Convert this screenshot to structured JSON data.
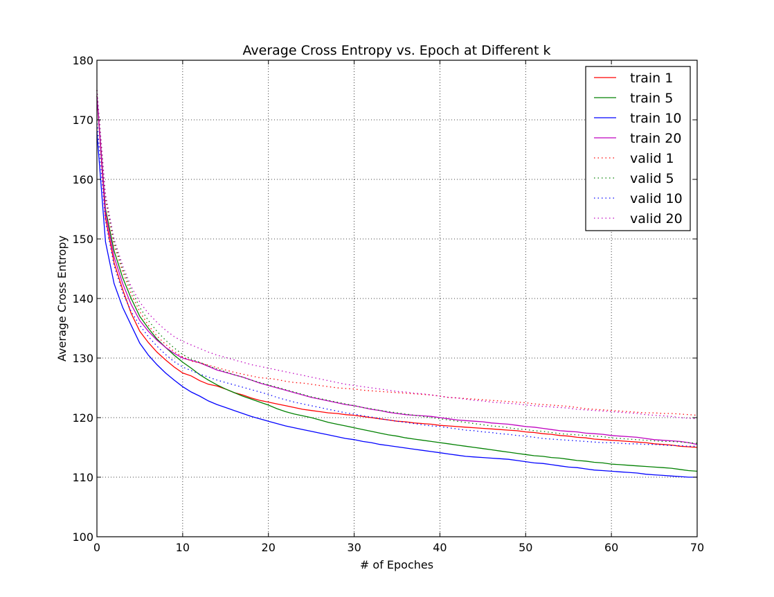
{
  "chart_data": {
    "type": "line",
    "title": "Average Cross Entropy vs. Epoch  at Different k",
    "xlabel": "# of Epoches",
    "ylabel": "Average Cross Entropy",
    "xlim": [
      0,
      70
    ],
    "ylim": [
      100,
      180
    ],
    "xticks": [
      0,
      10,
      20,
      30,
      40,
      50,
      60,
      70
    ],
    "yticks": [
      100,
      110,
      120,
      130,
      140,
      150,
      160,
      170,
      180
    ],
    "grid": true,
    "legend_position": "top-right",
    "x": [
      0,
      1,
      2,
      3,
      4,
      5,
      6,
      7,
      8,
      9,
      10,
      11,
      12,
      13,
      14,
      15,
      16,
      17,
      18,
      19,
      20,
      21,
      22,
      23,
      24,
      25,
      26,
      27,
      28,
      29,
      30,
      31,
      32,
      33,
      34,
      35,
      36,
      37,
      38,
      39,
      40,
      41,
      42,
      43,
      44,
      45,
      46,
      47,
      48,
      49,
      50,
      51,
      52,
      53,
      54,
      55,
      56,
      57,
      58,
      59,
      60,
      61,
      62,
      63,
      64,
      65,
      66,
      67,
      68,
      69,
      70
    ],
    "series": [
      {
        "name": "train 1",
        "color": "#ff0000",
        "style": "solid",
        "values": [
          174,
          153.5,
          146,
          141.5,
          137.5,
          134.5,
          132.6,
          131,
          129.7,
          128.5,
          127.5,
          127,
          126.2,
          125.6,
          125.3,
          124.8,
          124.2,
          123.8,
          123.3,
          122.9,
          122.6,
          122.3,
          122,
          121.7,
          121.4,
          121.2,
          121,
          120.8,
          120.7,
          120.5,
          120.4,
          120.2,
          120,
          119.8,
          119.6,
          119.4,
          119.3,
          119.1,
          119,
          118.9,
          118.7,
          118.6,
          118.5,
          118.4,
          118.3,
          118.2,
          118.1,
          118,
          117.9,
          117.8,
          117.6,
          117.5,
          117.3,
          117.2,
          117,
          116.9,
          116.7,
          116.6,
          116.4,
          116.3,
          116.2,
          116.1,
          116,
          115.9,
          115.8,
          115.6,
          115.5,
          115.4,
          115.2,
          115.1,
          115
        ]
      },
      {
        "name": "train 5",
        "color": "#008000",
        "style": "solid",
        "values": [
          174,
          155,
          148,
          143.5,
          140,
          137,
          135,
          133.2,
          131.8,
          130.5,
          129.3,
          128.3,
          127.2,
          126.3,
          125.5,
          124.8,
          124.2,
          123.6,
          123.1,
          122.6,
          122.1,
          121.5,
          121,
          120.6,
          120.3,
          120,
          119.6,
          119.2,
          118.9,
          118.6,
          118.3,
          118,
          117.7,
          117.4,
          117.1,
          116.9,
          116.6,
          116.4,
          116.2,
          116,
          115.8,
          115.6,
          115.4,
          115.2,
          115,
          114.8,
          114.6,
          114.4,
          114.2,
          114,
          113.8,
          113.6,
          113.5,
          113.3,
          113.2,
          113,
          112.8,
          112.7,
          112.5,
          112.4,
          112.2,
          112.1,
          112,
          111.9,
          111.8,
          111.7,
          111.6,
          111.5,
          111.3,
          111.1,
          111
        ]
      },
      {
        "name": "train 10",
        "color": "#0000ff",
        "style": "solid",
        "values": [
          168,
          149.5,
          142.5,
          138.5,
          135.5,
          132.5,
          130.5,
          128.9,
          127.5,
          126.3,
          125.2,
          124.3,
          123.6,
          122.8,
          122.2,
          121.7,
          121.2,
          120.7,
          120.2,
          119.8,
          119.4,
          119,
          118.6,
          118.3,
          118,
          117.7,
          117.4,
          117.1,
          116.8,
          116.5,
          116.3,
          116,
          115.8,
          115.5,
          115.3,
          115.1,
          114.9,
          114.7,
          114.5,
          114.3,
          114.1,
          113.9,
          113.7,
          113.5,
          113.4,
          113.3,
          113.2,
          113.1,
          113,
          112.8,
          112.6,
          112.4,
          112.3,
          112.1,
          111.9,
          111.7,
          111.6,
          111.4,
          111.2,
          111.1,
          111,
          110.9,
          110.8,
          110.7,
          110.5,
          110.4,
          110.3,
          110.2,
          110.1,
          110,
          110
        ]
      },
      {
        "name": "train 20",
        "color": "#bf00bf",
        "style": "solid",
        "values": [
          174,
          154.5,
          147,
          142.5,
          139,
          136.3,
          134.5,
          133,
          131.8,
          130.8,
          130,
          129.6,
          129.2,
          128.6,
          128,
          127.6,
          127.2,
          126.8,
          126.3,
          125.8,
          125.4,
          125,
          124.6,
          124.2,
          123.8,
          123.4,
          123.1,
          122.8,
          122.5,
          122.2,
          122,
          121.7,
          121.4,
          121.2,
          120.9,
          120.7,
          120.5,
          120.4,
          120.3,
          120.2,
          120,
          119.8,
          119.6,
          119.5,
          119.4,
          119.3,
          119.1,
          119,
          118.9,
          118.7,
          118.5,
          118.4,
          118.2,
          118,
          117.8,
          117.7,
          117.6,
          117.4,
          117.3,
          117.2,
          117,
          116.9,
          116.8,
          116.7,
          116.5,
          116.3,
          116.2,
          116.1,
          116,
          115.8,
          115.5
        ]
      },
      {
        "name": "valid 1",
        "color": "#ff0000",
        "style": "dotted",
        "values": [
          175,
          156.5,
          149,
          144.5,
          140.8,
          137.8,
          135.5,
          133.7,
          132.3,
          131.1,
          130.2,
          129.5,
          129.2,
          128.8,
          128.4,
          128,
          127.6,
          127.3,
          127,
          126.7,
          126.6,
          126.4,
          126.1,
          125.9,
          125.8,
          125.6,
          125.4,
          125.2,
          125,
          124.9,
          124.8,
          124.6,
          124.5,
          124.4,
          124.3,
          124.2,
          124.1,
          124,
          123.9,
          123.8,
          123.6,
          123.4,
          123.3,
          123.2,
          123.1,
          123,
          122.9,
          122.8,
          122.7,
          122.6,
          122.5,
          122.3,
          122.2,
          122.1,
          122,
          121.9,
          121.7,
          121.5,
          121.4,
          121.3,
          121.2,
          121.1,
          121,
          120.9,
          120.8,
          120.8,
          120.7,
          120.7,
          120.6,
          120.5,
          120.4
        ]
      },
      {
        "name": "valid 5",
        "color": "#008000",
        "style": "dotted",
        "values": [
          175,
          157,
          149.5,
          145,
          141.5,
          138.5,
          136.3,
          134.5,
          133,
          131.7,
          130.6,
          129.8,
          129.3,
          128.7,
          128.2,
          127.7,
          127.2,
          126.8,
          126.3,
          125.9,
          125.5,
          125.1,
          124.7,
          124.3,
          123.9,
          123.5,
          123.2,
          122.9,
          122.6,
          122.3,
          122,
          121.7,
          121.5,
          121.2,
          121,
          120.8,
          120.6,
          120.4,
          120.2,
          120,
          119.8,
          119.6,
          119.4,
          119.2,
          119,
          118.8,
          118.6,
          118.5,
          118.3,
          118.1,
          118,
          117.8,
          117.7,
          117.5,
          117.3,
          117.2,
          117.1,
          117,
          116.9,
          116.8,
          116.6,
          116.5,
          116.4,
          116.3,
          116.2,
          116.1,
          116,
          116,
          115.9,
          115.8,
          115.7
        ]
      },
      {
        "name": "valid 10",
        "color": "#0000ff",
        "style": "dotted",
        "values": [
          170,
          153,
          145.5,
          141,
          137.8,
          135.5,
          133.6,
          132,
          130.6,
          129.4,
          128.5,
          127.9,
          127.3,
          126.8,
          126.3,
          125.9,
          125.5,
          125.1,
          124.7,
          124.3,
          123.9,
          123.4,
          123,
          122.6,
          122.3,
          122,
          121.7,
          121.4,
          121.1,
          120.8,
          120.6,
          120.3,
          120.1,
          119.8,
          119.6,
          119.4,
          119.2,
          119,
          118.8,
          118.6,
          118.5,
          118.3,
          118.1,
          117.9,
          117.8,
          117.6,
          117.5,
          117.3,
          117.2,
          117,
          116.9,
          116.7,
          116.5,
          116.4,
          116.3,
          116.2,
          116.1,
          116,
          115.9,
          115.8,
          115.8,
          115.7,
          115.6,
          115.6,
          115.5,
          115.5,
          115.4,
          115.3,
          115.3,
          115.2,
          115.2
        ]
      },
      {
        "name": "valid 20",
        "color": "#bf00bf",
        "style": "dotted",
        "values": [
          175,
          157.5,
          150,
          145.5,
          142,
          139.4,
          137.5,
          136,
          134.7,
          133.6,
          132.8,
          132.2,
          131.6,
          131,
          130.5,
          130.1,
          129.7,
          129.3,
          128.9,
          128.6,
          128.3,
          128,
          127.7,
          127.4,
          127.1,
          126.8,
          126.5,
          126.2,
          125.9,
          125.6,
          125.4,
          125.2,
          125,
          124.8,
          124.6,
          124.4,
          124.3,
          124.1,
          124,
          123.8,
          123.6,
          123.4,
          123.3,
          123.1,
          122.9,
          122.8,
          122.6,
          122.5,
          122.4,
          122.3,
          122.1,
          122,
          121.9,
          121.8,
          121.7,
          121.6,
          121.4,
          121.3,
          121.2,
          121.1,
          121,
          120.9,
          120.8,
          120.7,
          120.5,
          120.4,
          120.3,
          120.2,
          120,
          119.9,
          119.8
        ]
      }
    ]
  }
}
